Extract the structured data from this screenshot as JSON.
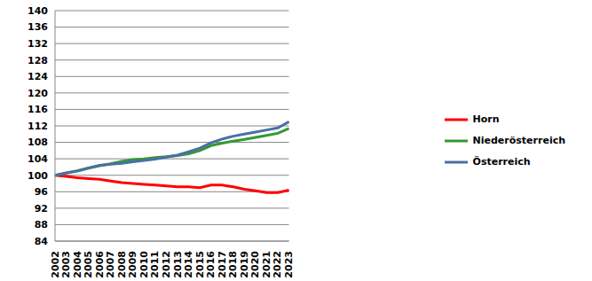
{
  "chart_data": {
    "type": "line",
    "categories": [
      "2002",
      "2003",
      "2004",
      "2005",
      "2006",
      "2007",
      "2008",
      "2009",
      "2010",
      "2011",
      "2012",
      "2013",
      "2014",
      "2015",
      "2016",
      "2017",
      "2018",
      "2019",
      "2020",
      "2021",
      "2022",
      "2023"
    ],
    "series": [
      {
        "name": "Horn",
        "color": "#ff0000",
        "values": [
          100,
          99.7,
          99.4,
          99.2,
          99.0,
          98.6,
          98.2,
          98.0,
          97.8,
          97.6,
          97.4,
          97.2,
          97.2,
          97.0,
          97.6,
          97.6,
          97.2,
          96.6,
          96.2,
          95.8,
          95.8,
          96.4
        ]
      },
      {
        "name": "Niederösterreich",
        "color": "#339933",
        "values": [
          100,
          100.5,
          101.0,
          101.7,
          102.3,
          102.8,
          103.4,
          103.8,
          104.0,
          104.3,
          104.5,
          104.8,
          105.2,
          106.0,
          107.2,
          107.8,
          108.3,
          108.7,
          109.2,
          109.7,
          110.2,
          111.4
        ]
      },
      {
        "name": "Österreich",
        "color": "#4a6fa5",
        "values": [
          100,
          100.6,
          101.1,
          101.8,
          102.4,
          102.7,
          102.9,
          103.3,
          103.6,
          103.9,
          104.4,
          104.9,
          105.7,
          106.6,
          107.9,
          108.8,
          109.5,
          110.0,
          110.5,
          111.0,
          111.5,
          113.0
        ]
      }
    ],
    "ylim": [
      84,
      140
    ],
    "yticks": [
      84,
      88,
      92,
      96,
      100,
      104,
      108,
      112,
      116,
      120,
      124,
      128,
      132,
      136,
      140
    ],
    "grid": true,
    "legend": "right"
  }
}
